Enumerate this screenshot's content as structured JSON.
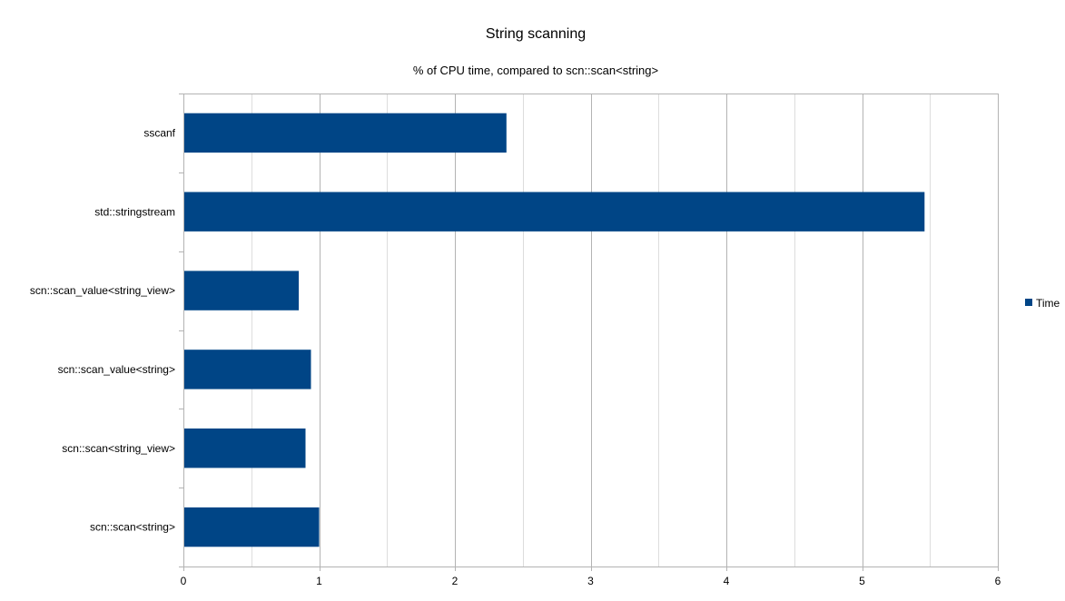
{
  "chart_data": {
    "type": "bar",
    "orientation": "horizontal",
    "title": "String scanning",
    "subtitle": "% of CPU time, compared to scn::scan<string>",
    "xlabel": "",
    "ylabel": "",
    "categories": [
      "sscanf",
      "std::stringstream",
      "scn::scan_value<string_view>",
      "scn::scan_value<string>",
      "scn::scan<string_view>",
      "scn::scan<string>"
    ],
    "series": [
      {
        "name": "Time",
        "color": "#004586",
        "values": [
          2.38,
          5.46,
          0.85,
          0.94,
          0.9,
          1.0
        ]
      }
    ],
    "xlim": [
      0,
      6
    ],
    "x_ticks": [
      "0",
      "1",
      "2",
      "3",
      "4",
      "5",
      "6"
    ],
    "grid": true,
    "legend": {
      "position": "right",
      "entries": [
        "Time"
      ]
    }
  },
  "colors": {
    "bar": "#004586",
    "major_grid": "#b3b3b3",
    "minor_grid": "#dddddd",
    "background": "#ffffff"
  }
}
